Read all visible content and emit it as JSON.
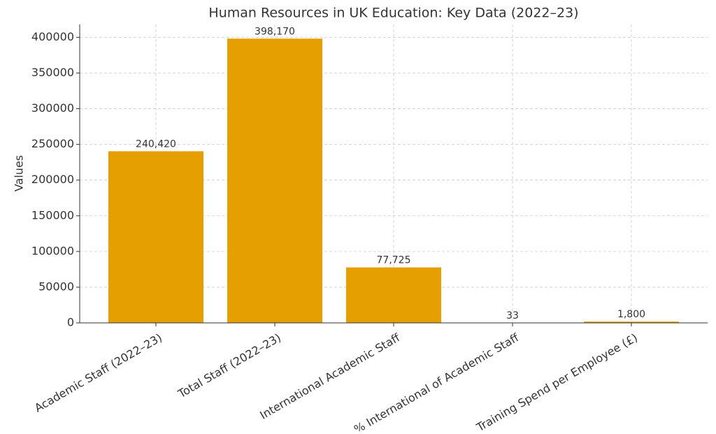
{
  "chart_data": {
    "type": "bar",
    "title": "Human Resources in UK Education: Key Data (2022–23)",
    "y_label": "Values",
    "categories": [
      "Academic Staff (2022–23)",
      "Total Staff (2022–23)",
      "International Academic Staff",
      "% International of Academic Staff",
      "Training Spend per Employee (£)"
    ],
    "values": [
      240420,
      398170,
      77725,
      33,
      1800
    ],
    "value_labels": [
      "240,420",
      "398,170",
      "77,725",
      "33",
      "1,800"
    ],
    "color": "#e69f00",
    "ylim": [
      0,
      418000
    ],
    "yticks": [
      0,
      50000,
      100000,
      150000,
      200000,
      250000,
      300000,
      350000,
      400000
    ],
    "grid": true
  }
}
